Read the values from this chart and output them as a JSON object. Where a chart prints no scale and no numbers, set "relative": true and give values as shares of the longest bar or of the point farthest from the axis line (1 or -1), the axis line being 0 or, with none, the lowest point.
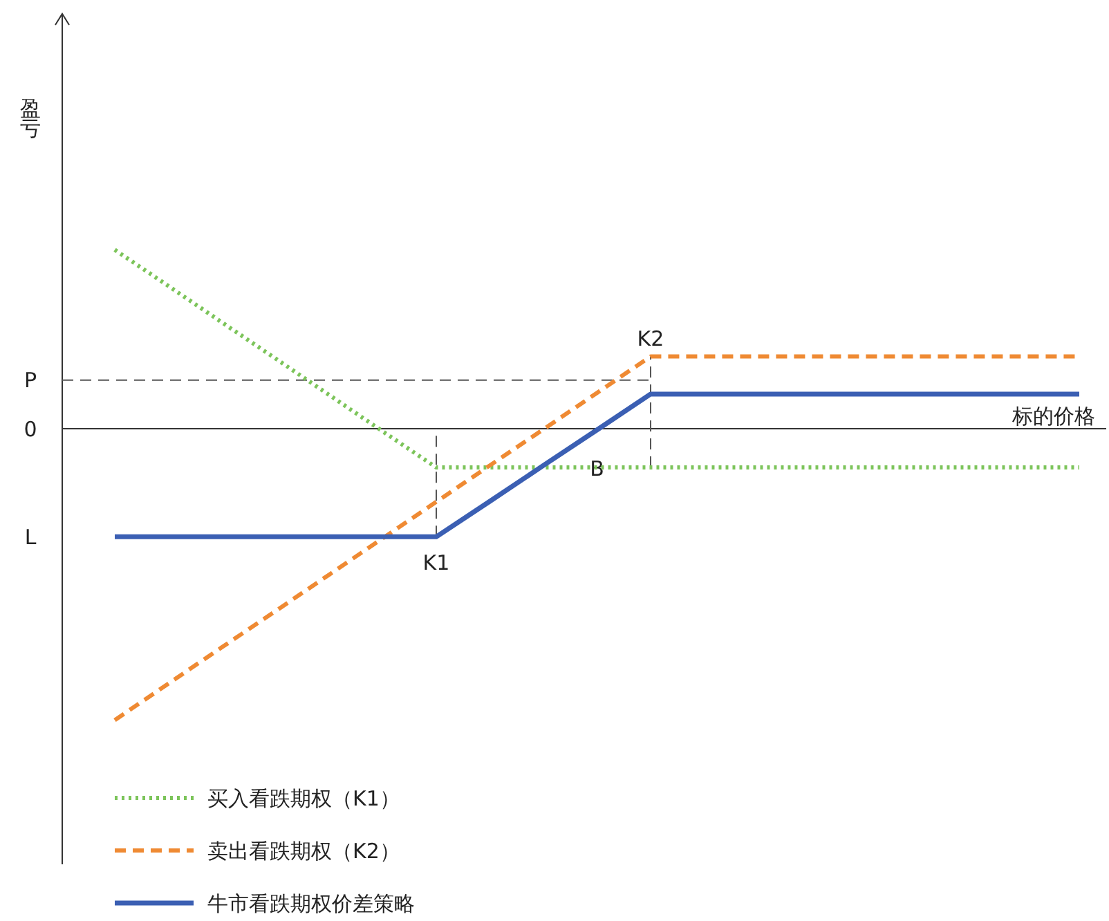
{
  "chart_data": {
    "type": "line",
    "relative": true,
    "xlabel": "标的价格",
    "categories": [
      null,
      null,
      null,
      null,
      null,
      null,
      "K1",
      null,
      null,
      "B",
      "K2",
      null,
      null,
      null,
      null,
      null,
      null,
      null,
      null
    ],
    "series": [
      {
        "name": "买入看跌期权（K1）",
        "color": "#7cc45a",
        "line_style": "dotted",
        "values": [
          0.614,
          0.49,
          0.365,
          0.241,
          0.116,
          -0.009,
          -0.133,
          -0.133,
          -0.133,
          -0.133,
          -0.133,
          -0.133,
          -0.133,
          -0.133,
          -0.133,
          -0.133,
          -0.133,
          -0.133,
          -0.133
        ]
      },
      {
        "name": "卖出看跌期权（K2）",
        "color": "#ef8a33",
        "line_style": "dashed",
        "values": [
          -1,
          -0.875,
          -0.75,
          -0.626,
          -0.501,
          -0.376,
          -0.251,
          -0.126,
          -0.002,
          0.123,
          0.248,
          0.248,
          0.248,
          0.248,
          0.248,
          0.248,
          0.248,
          0.248,
          0.248
        ]
      },
      {
        "name": "牛市看跌期权价差策略",
        "color": "#3b5fb3",
        "line_style": "solid",
        "values": [
          -0.371,
          -0.371,
          -0.371,
          -0.371,
          -0.371,
          -0.371,
          -0.371,
          -0.249,
          -0.126,
          -0.004,
          0.119,
          0.119,
          0.119,
          0.119,
          0.119,
          0.119,
          0.119,
          0.119,
          0.119
        ]
      }
    ],
    "ref_lines": [
      {
        "axis": "y",
        "value": 0.167,
        "label": "P",
        "line_style": "dashed",
        "color": "#555555"
      },
      {
        "axis": "x",
        "value": "K1",
        "line_style": "dashed",
        "color": "#555555"
      },
      {
        "axis": "x",
        "value": "K2",
        "line_style": "dashed",
        "color": "#555555"
      }
    ],
    "annotations": [
      "0",
      "L",
      "盈亏"
    ],
    "legend": "bottom left"
  }
}
